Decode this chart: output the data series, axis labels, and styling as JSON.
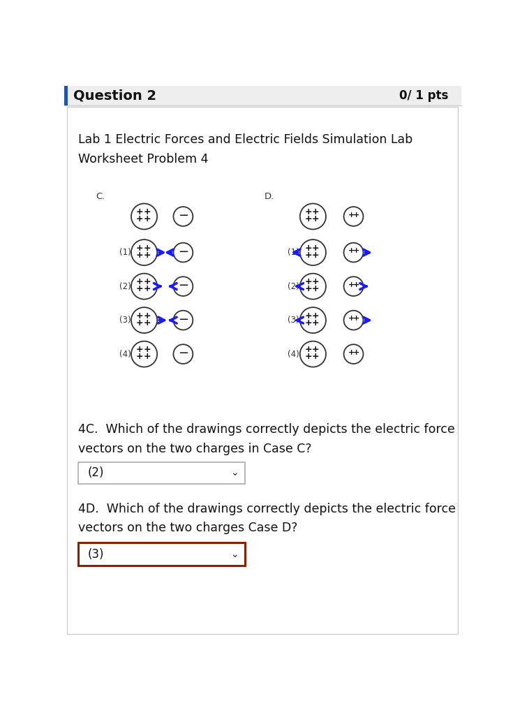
{
  "title_bar_text": "Question 2",
  "pts_text": "0/ 1 pts",
  "lab_text": "Lab 1 Electric Forces and Electric Fields Simulation Lab",
  "worksheet_text": "Worksheet Problem 4",
  "section_C_label": "C.",
  "section_D_label": "D.",
  "row_labels": [
    "(1)",
    "(2)",
    "(3)",
    "(4)"
  ],
  "question_4C": "4C.  Which of the drawings correctly depicts the electric force\nvectors on the two charges in Case C?",
  "question_4D": "4D.  Which of the drawings correctly depicts the electric force\nvectors on the two charges Case D?",
  "answer_4C": "(2)",
  "answer_4D": "(3)",
  "arrow_color": "#1a1aff",
  "bg_color": "#ffffff",
  "header_bg": "#eeeeee",
  "header_stripe_color": "#2255aa",
  "dropdown_border_4C": "#aaaaaa",
  "dropdown_border_4D": "#8B2000"
}
